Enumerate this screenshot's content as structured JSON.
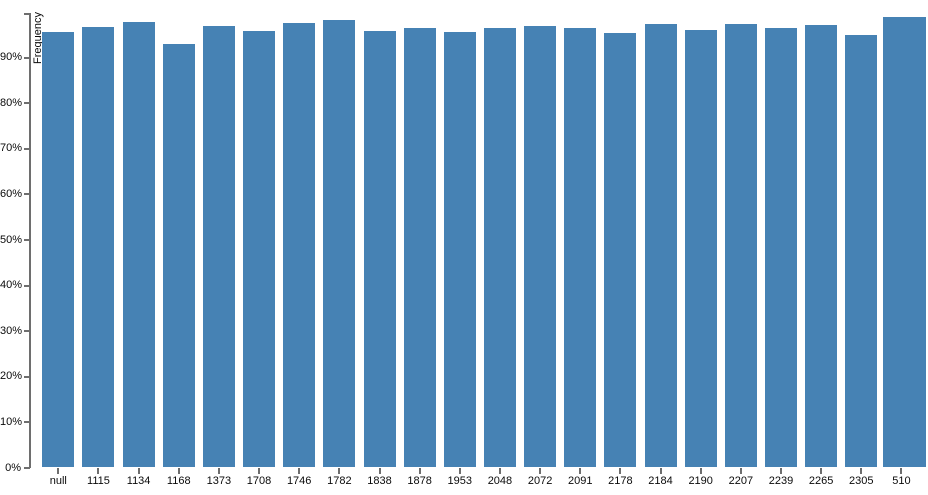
{
  "chart_data": {
    "type": "bar",
    "title": "",
    "xlabel": "",
    "ylabel": "Frequency",
    "categories": [
      "null",
      "1115",
      "1134",
      "1168",
      "1373",
      "1708",
      "1746",
      "1782",
      "1838",
      "1878",
      "1953",
      "2048",
      "2072",
      "2091",
      "2178",
      "2184",
      "2190",
      "2207",
      "2239",
      "2265",
      "2305",
      "510"
    ],
    "values": [
      95.7,
      96.8,
      97.7,
      92.9,
      96.9,
      95.8,
      97.5,
      98.2,
      95.9,
      96.6,
      95.6,
      96.4,
      96.9,
      96.4,
      95.5,
      97.4,
      96.1,
      97.4,
      96.4,
      97.2,
      95.0,
      98.8
    ],
    "y_tick_values": [
      0,
      10,
      20,
      30,
      40,
      50,
      60,
      70,
      80,
      90
    ],
    "y_tick_labels": [
      "0%",
      "10%",
      "20%",
      "30%",
      "40%",
      "50%",
      "60%",
      "70%",
      "80%",
      "90%"
    ],
    "ylim": [
      0,
      100
    ],
    "y_unit": "%",
    "grid": false,
    "legend": "none",
    "bar_color": "#4682B4",
    "axis_color": "#6e6e6e",
    "text_color": "#0a0a0a",
    "background": "#FFFFFF"
  }
}
